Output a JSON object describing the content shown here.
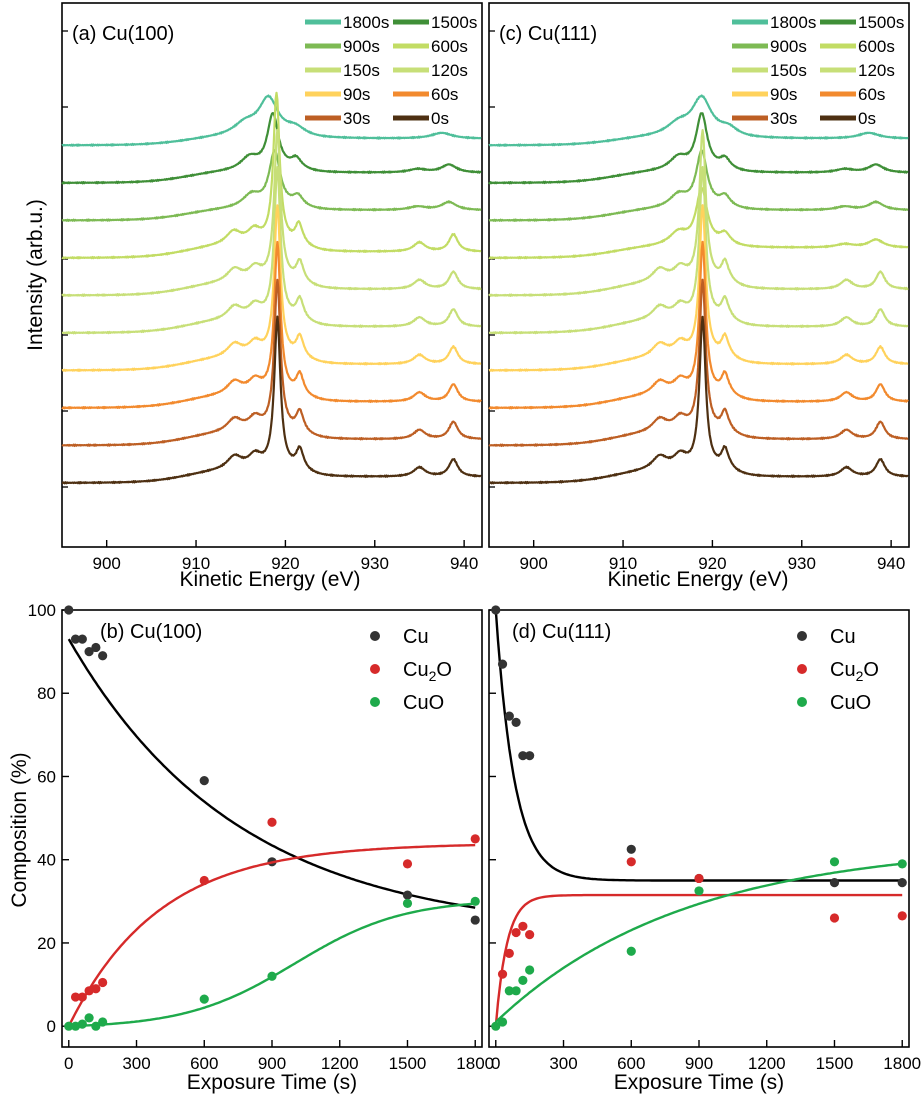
{
  "chart_data": [
    {
      "panel": "a",
      "type": "line",
      "title": "(a) Cu(100)",
      "xlabel": "Kinetic Energy  (eV)",
      "ylabel": "Intensity (arb.u.)",
      "xlim": [
        895,
        942
      ],
      "xticks": [
        900,
        910,
        920,
        930,
        940
      ],
      "grid": false,
      "legend_position": "top-right",
      "series": [
        {
          "name": "1800s",
          "color": "#4fbf9a",
          "offset": 10,
          "peak": 918.1,
          "kind": "broad"
        },
        {
          "name": "1500s",
          "color": "#3f8f37",
          "offset": 9,
          "peak": 918.6,
          "kind": "mid"
        },
        {
          "name": "900s",
          "color": "#7dba54",
          "offset": 8,
          "peak": 918.8,
          "kind": "mid"
        },
        {
          "name": "600s",
          "color": "#c2dc64",
          "offset": 7,
          "peak": 919.0,
          "kind": "sharp"
        },
        {
          "name": "150s",
          "color": "#c7df78",
          "offset": 6,
          "peak": 919.1,
          "kind": "sharp"
        },
        {
          "name": "120s",
          "color": "#c7df78",
          "offset": 5,
          "peak": 919.1,
          "kind": "sharp"
        },
        {
          "name": "90s",
          "color": "#ffd25c",
          "offset": 4,
          "peak": 919.1,
          "kind": "sharp"
        },
        {
          "name": "60s",
          "color": "#f28a2e",
          "offset": 3,
          "peak": 919.1,
          "kind": "sharp"
        },
        {
          "name": "30s",
          "color": "#bd5f24",
          "offset": 2,
          "peak": 919.1,
          "kind": "sharp"
        },
        {
          "name": "0s",
          "color": "#4e3012",
          "offset": 1,
          "peak": 919.1,
          "kind": "sharp"
        }
      ]
    },
    {
      "panel": "c",
      "type": "line",
      "title": "(c) Cu(111)",
      "xlabel": "Kinetic Energy  (eV)",
      "ylabel": "",
      "xlim": [
        895,
        942
      ],
      "xticks": [
        900,
        910,
        920,
        930,
        940
      ],
      "grid": false,
      "legend_position": "top-right",
      "series": [
        {
          "name": "1800s",
          "color": "#4fbf9a",
          "offset": 10,
          "peak": 918.8,
          "kind": "broad"
        },
        {
          "name": "1500s",
          "color": "#3f8f37",
          "offset": 9,
          "peak": 918.8,
          "kind": "mid"
        },
        {
          "name": "900s",
          "color": "#7dba54",
          "offset": 8,
          "peak": 918.8,
          "kind": "mid"
        },
        {
          "name": "600s",
          "color": "#c2dc64",
          "offset": 7,
          "peak": 918.8,
          "kind": "mid"
        },
        {
          "name": "150s",
          "color": "#c7df78",
          "offset": 6,
          "peak": 918.9,
          "kind": "sharp"
        },
        {
          "name": "120s",
          "color": "#c7df78",
          "offset": 5,
          "peak": 918.9,
          "kind": "sharp"
        },
        {
          "name": "90s",
          "color": "#ffd25c",
          "offset": 4,
          "peak": 918.9,
          "kind": "sharp"
        },
        {
          "name": "60s",
          "color": "#f28a2e",
          "offset": 3,
          "peak": 918.9,
          "kind": "sharp"
        },
        {
          "name": "30s",
          "color": "#bd5f24",
          "offset": 2,
          "peak": 918.9,
          "kind": "sharp"
        },
        {
          "name": "0s",
          "color": "#4e3012",
          "offset": 1,
          "peak": 918.9,
          "kind": "sharp"
        }
      ]
    },
    {
      "panel": "b",
      "type": "scatter",
      "title": "(b) Cu(100)",
      "xlabel": "Exposure Time (s)",
      "ylabel": "Composition (%)",
      "xlim": [
        -30,
        1830
      ],
      "ylim": [
        -5,
        100
      ],
      "xticks": [
        0,
        300,
        600,
        900,
        1200,
        1500,
        1800
      ],
      "yticks": [
        0,
        20,
        40,
        60,
        80,
        100
      ],
      "legend_position": "top-right",
      "series": [
        {
          "name": "Cu",
          "color": "#333333",
          "x": [
            0,
            30,
            60,
            90,
            120,
            150,
            600,
            900,
            1500,
            1800
          ],
          "y": [
            100,
            93,
            93,
            90,
            91,
            89,
            59,
            39.5,
            31.5,
            25.5
          ],
          "fit": {
            "type": "exp",
            "A": 71,
            "k": 0.00133,
            "C": 22
          }
        },
        {
          "name": "Cu2O",
          "color": "#d62a2a",
          "x": [
            30,
            60,
            90,
            120,
            150,
            600,
            900,
            1500,
            1800
          ],
          "y": [
            7,
            7,
            8.5,
            9,
            10.5,
            35,
            49,
            39,
            45
          ],
          "fit": {
            "type": "rise",
            "A": 44,
            "k": 0.0025,
            "C": 0
          }
        },
        {
          "name": "CuO",
          "color": "#1eaa4b",
          "x": [
            0,
            30,
            60,
            90,
            120,
            150,
            600,
            900,
            1500,
            1800
          ],
          "y": [
            0,
            0,
            0.5,
            2,
            0,
            1,
            6.5,
            12,
            29.5,
            30
          ],
          "fit": {
            "type": "sigmoid",
            "A": 31,
            "mid": 1000,
            "w": 240
          }
        }
      ]
    },
    {
      "panel": "d",
      "type": "scatter",
      "title": "(d) Cu(111)",
      "xlabel": "Exposure Time (s)",
      "ylabel": "",
      "xlim": [
        -30,
        1830
      ],
      "ylim": [
        -5,
        100
      ],
      "xticks": [
        0,
        300,
        600,
        900,
        1200,
        1500,
        1800
      ],
      "yticks": [
        0,
        20,
        40,
        60,
        80,
        100
      ],
      "legend_position": "top-right",
      "series": [
        {
          "name": "Cu",
          "color": "#333333",
          "x": [
            0,
            30,
            60,
            90,
            120,
            150,
            600,
            900,
            1500,
            1800
          ],
          "y": [
            100,
            87,
            74.5,
            73,
            65,
            65,
            42.5,
            35.5,
            34.5,
            34.5
          ],
          "fit": {
            "type": "exp",
            "A": 65,
            "k": 0.012,
            "C": 35
          }
        },
        {
          "name": "Cu2O",
          "color": "#d62a2a",
          "x": [
            30,
            60,
            90,
            120,
            150,
            600,
            900,
            1500,
            1800
          ],
          "y": [
            12.5,
            17.5,
            22.5,
            24,
            22,
            39.5,
            35.5,
            26,
            26.5
          ],
          "fit": {
            "type": "rise",
            "A": 31.5,
            "k": 0.02,
            "C": 0
          }
        },
        {
          "name": "CuO",
          "color": "#1eaa4b",
          "x": [
            0,
            30,
            60,
            90,
            120,
            150,
            600,
            900,
            1500,
            1800
          ],
          "y": [
            0,
            1,
            8.5,
            8.5,
            11,
            13.5,
            18,
            32.5,
            39.5,
            39
          ],
          "fit": {
            "type": "rise",
            "A": 43,
            "k": 0.0012,
            "C": 1
          }
        }
      ]
    }
  ],
  "legend_labels": {
    "cu": "Cu",
    "cu2o_main": "Cu",
    "cu2o_sub": "2",
    "cu2o_tail": "O",
    "cuo": "CuO"
  }
}
